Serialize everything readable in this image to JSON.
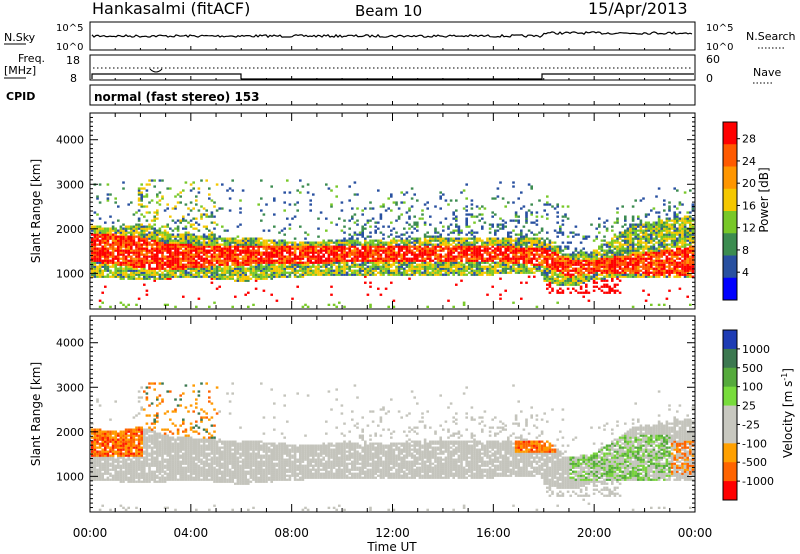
{
  "header": {
    "station": "Hankasalmi (fitACF)",
    "beam": "Beam 10",
    "date": "15/Apr/2013"
  },
  "strip_noise": {
    "left_label": "N.Sky",
    "right_label": "N.Search",
    "left_ticks": [
      "10^5",
      "10^0"
    ],
    "right_ticks": [
      "10^5",
      "10^0"
    ]
  },
  "strip_freq": {
    "left_label_1": "Freq.",
    "left_label_2": "[MHz]",
    "left_ticks": [
      "18",
      "8"
    ],
    "right_label": "Nave",
    "right_ticks": [
      "60",
      "0"
    ]
  },
  "cpid": {
    "label": "CPID",
    "text": "normal (fast stereo) 153"
  },
  "colorbars": {
    "power": {
      "label": "Power [dB]",
      "ticks": [
        "28",
        "24",
        "20",
        "16",
        "12",
        "8",
        "4"
      ],
      "colors": [
        "#ff0000",
        "#ff5a00",
        "#ff9600",
        "#f5c800",
        "#78c828",
        "#3c8c50",
        "#2850a0",
        "#0000ff"
      ]
    },
    "velocity": {
      "label": "Velocity [m s",
      "label_sup": "-1",
      "label_end": "]",
      "ticks": [
        "1000",
        "500",
        "100",
        "25",
        "-25",
        "-100",
        "-500",
        "-1000"
      ],
      "colors": [
        "#1e3cb4",
        "#3c7850",
        "#55aa3c",
        "#78dc3c",
        "#c8c8c0",
        "#c8c8c0",
        "#ffa000",
        "#ff6400",
        "#ff0000"
      ]
    }
  },
  "chart_data": [
    {
      "type": "heatmap",
      "panel": "power",
      "ylabel": "Slant Range [km]",
      "y_ticks": [
        "1000",
        "2000",
        "3000",
        "4000"
      ],
      "ylim": [
        200,
        4600
      ],
      "x_ticks": [
        "00:00",
        "04:00",
        "08:00",
        "12:00",
        "16:00",
        "20:00",
        "00:00"
      ],
      "xlim_hours": [
        0,
        24
      ],
      "features": "Main band 1000-2000 km across the day with highest power (red) near 1400-1600 km; diffuse scatter up to 3000 km; second strong band near 800-1600 km after 18:00"
    },
    {
      "type": "heatmap",
      "panel": "velocity",
      "ylabel": "Slant Range [km]",
      "y_ticks": [
        "1000",
        "2000",
        "3000",
        "4000"
      ],
      "ylim": [
        200,
        4600
      ],
      "x_ticks": [
        "00:00",
        "04:00",
        "08:00",
        "12:00",
        "16:00",
        "20:00",
        "00:00"
      ],
      "xlabel": "Time UT",
      "features": "Mostly ground scatter (grey) in 1000-2000 km band; negative velocities (orange/red) near 00:00-02:00 and 17:00-19:00; positive (green) after 19:00"
    }
  ]
}
